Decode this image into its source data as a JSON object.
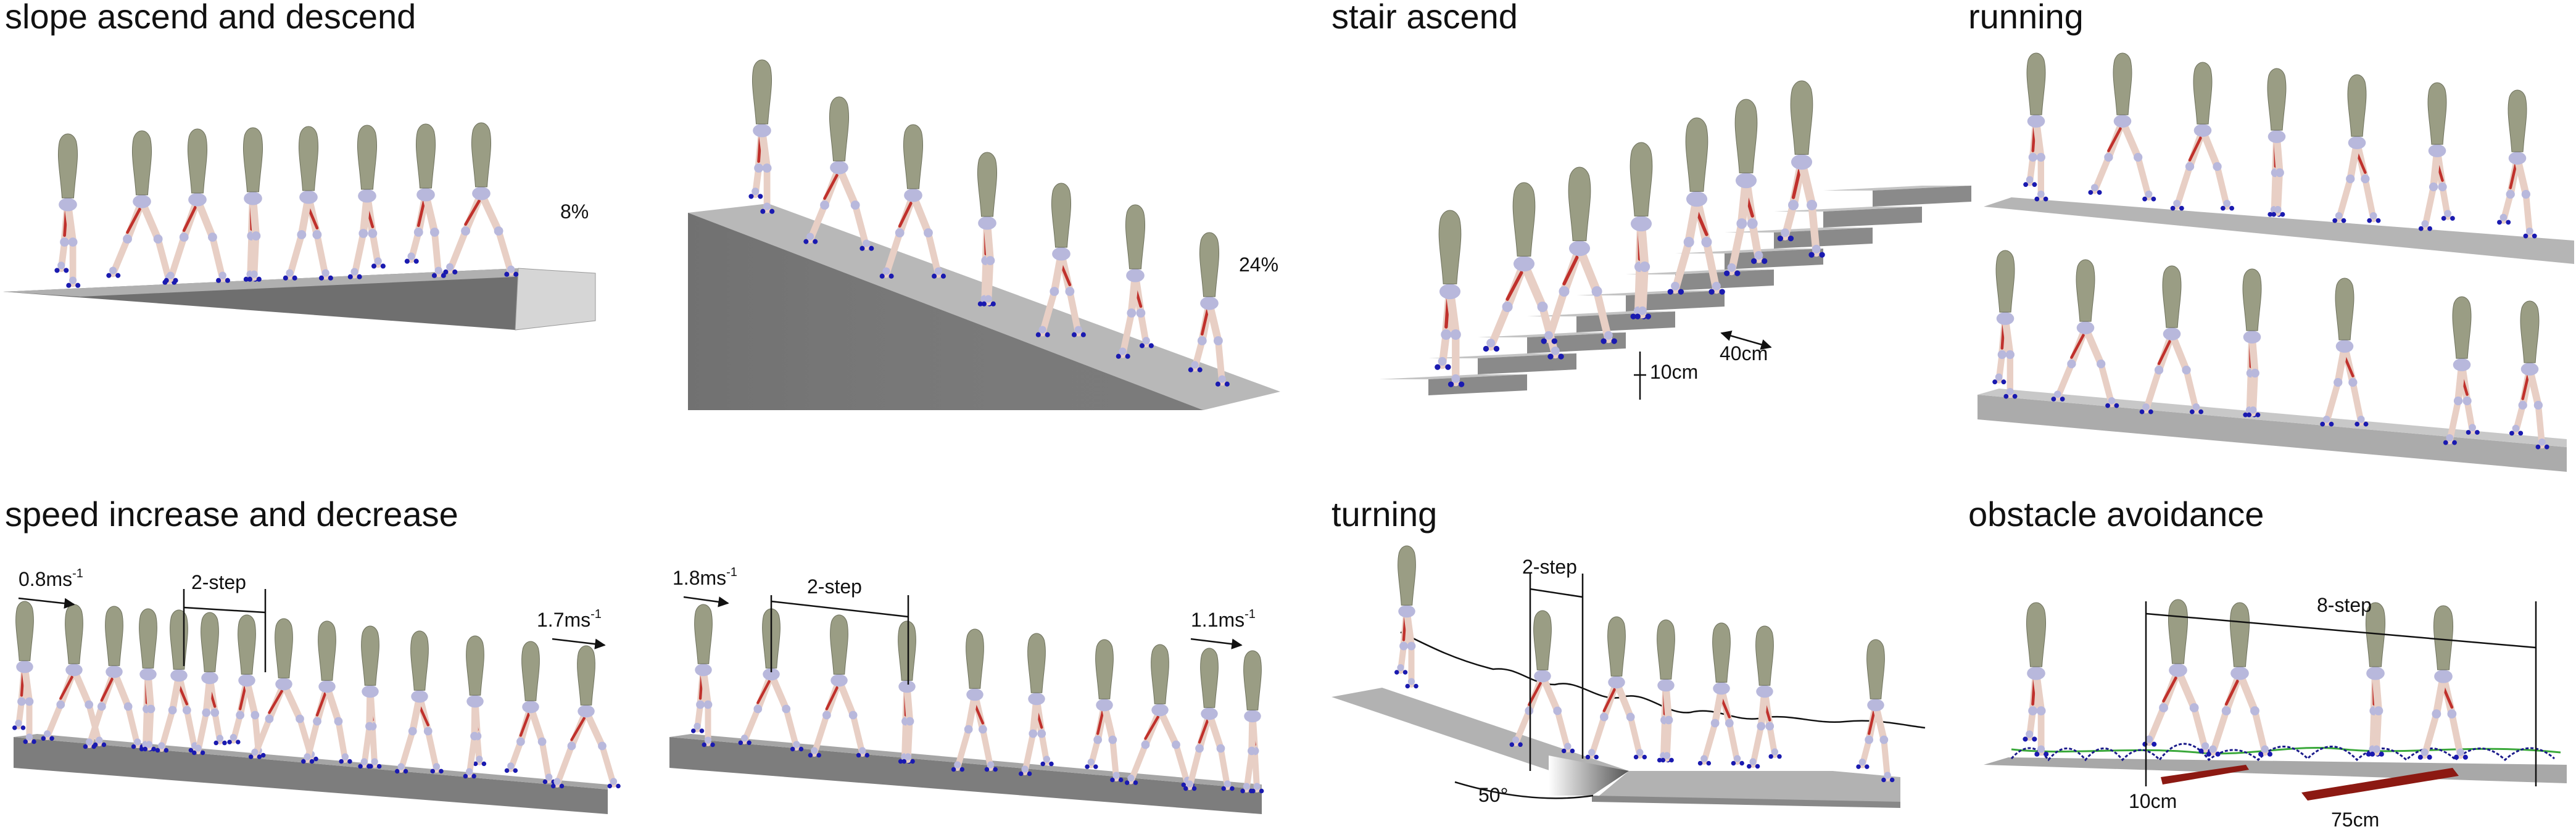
{
  "panels": {
    "slope": {
      "title": "slope ascend and descend",
      "grade_a": "8%",
      "grade_b": "24%"
    },
    "stair": {
      "title": "stair ascend",
      "riser": "10cm",
      "tread": "40cm"
    },
    "running": {
      "title": "running"
    },
    "speed": {
      "title": "speed increase and decrease",
      "a_start": {
        "base": "0.8ms",
        "sup": "-1"
      },
      "a_end": {
        "base": "1.7ms",
        "sup": "-1"
      },
      "a_step": "2-step",
      "b_start": {
        "base": "1.8ms",
        "sup": "-1"
      },
      "b_end": {
        "base": "1.1ms",
        "sup": "-1"
      },
      "b_step": "2-step"
    },
    "turning": {
      "title": "turning",
      "step": "2-step",
      "angle": "50°"
    },
    "obstacle": {
      "title": "obstacle avoidance",
      "step": "8-step",
      "height": "10cm",
      "length": "75cm"
    }
  },
  "colors": {
    "ground_top": "#b8b8b8",
    "ground_side": "#7a7a7a",
    "ground_face": "#d4d4d4",
    "torso": "#9a9d84",
    "leg": "#e8cfc5",
    "muscle": "#c0312c",
    "joint": "#b8b8dc",
    "marker": "#1a1ab0",
    "marker_green": "#3aa83a",
    "obstacle": "#9c1a14",
    "path": "#111111"
  }
}
